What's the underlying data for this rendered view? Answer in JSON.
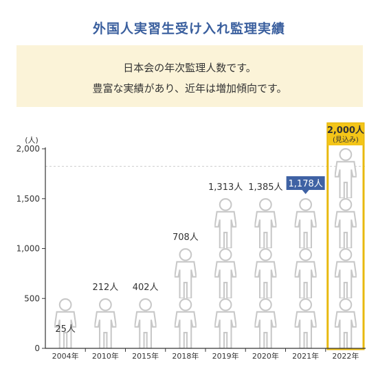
{
  "header": {
    "title": "外国人実習生受け入れ監理実績",
    "intro_line1": "日本会の年次監理人数です。",
    "intro_line2": "豊富な実績があり、近年は増加傾向です。"
  },
  "colors": {
    "accent": "#3a5f9e",
    "light_blue": "#3faad8",
    "dark_blue": "#3f62a4",
    "yellow": "#f4c518",
    "outline_gray": "#c8c8c8",
    "highlight_border": "#e8b90e"
  },
  "chart_data": {
    "type": "bar",
    "ylabel": "(人)",
    "ylim": [
      0,
      2000
    ],
    "yticks": [
      0,
      500,
      1000,
      1500,
      2000
    ],
    "ytick_labels": [
      "0",
      "500",
      "1,000",
      "1,500",
      "2,000"
    ],
    "categories": [
      "2004年",
      "2010年",
      "2015年",
      "2018年",
      "2019年",
      "2020年",
      "2021年",
      "2022年"
    ],
    "values": [
      25,
      212,
      402,
      708,
      1313,
      1385,
      1178,
      2000
    ],
    "value_labels": [
      "25人",
      "212人",
      "402人",
      "708人",
      "1,313人",
      "1,385人",
      "1,178人",
      "2,000人"
    ],
    "highlight_sub_label": "(見込み)",
    "bar_colors": [
      "light_blue",
      "light_blue",
      "light_blue",
      "light_blue",
      "light_blue",
      "light_blue",
      "dark_blue",
      "yellow"
    ]
  }
}
